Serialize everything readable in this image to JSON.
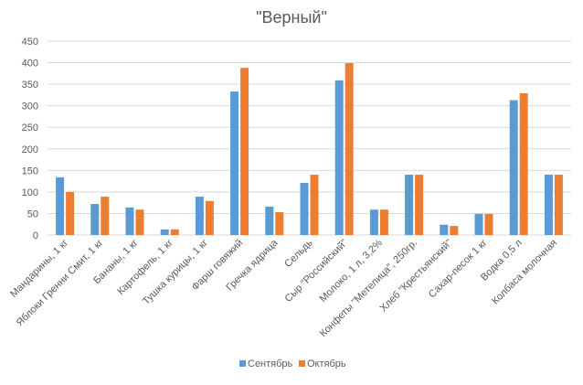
{
  "chart_data": {
    "type": "bar",
    "title": "\"Верный\"",
    "xlabel": "",
    "ylabel": "",
    "ylim": [
      0,
      450
    ],
    "ytick_step": 50,
    "grid": true,
    "legend_position": "bottom",
    "categories": [
      "Мандарины, 1 кг",
      "Яблоки Гренни Смит, 1 кг",
      "Бананы, 1 кг",
      "Картофель, 1 кг",
      "Тушка курицы, 1 кг",
      "Фарш говяжий",
      "Гречка ядрица",
      "Сельдь",
      "Сыр \"Российский\"",
      "Молоко, 1 л, 3,2%",
      "Конфеты \"Метелица\", 250гр.",
      "Хлеб \"Крестьянский\"",
      "Сахар-песок 1 кг",
      "Водка 0,5 л",
      "Колбаса молочная"
    ],
    "series": [
      {
        "name": "Сентябрь",
        "color": "#5B9BD5",
        "values": [
          134,
          72,
          64,
          13,
          89,
          333,
          66,
          121,
          359,
          59,
          140,
          24,
          49,
          313,
          140
        ]
      },
      {
        "name": "Октябрь",
        "color": "#ED7D31",
        "values": [
          100,
          89,
          59,
          13,
          79,
          388,
          53,
          140,
          399,
          59,
          140,
          21,
          49,
          329,
          140
        ]
      }
    ]
  }
}
